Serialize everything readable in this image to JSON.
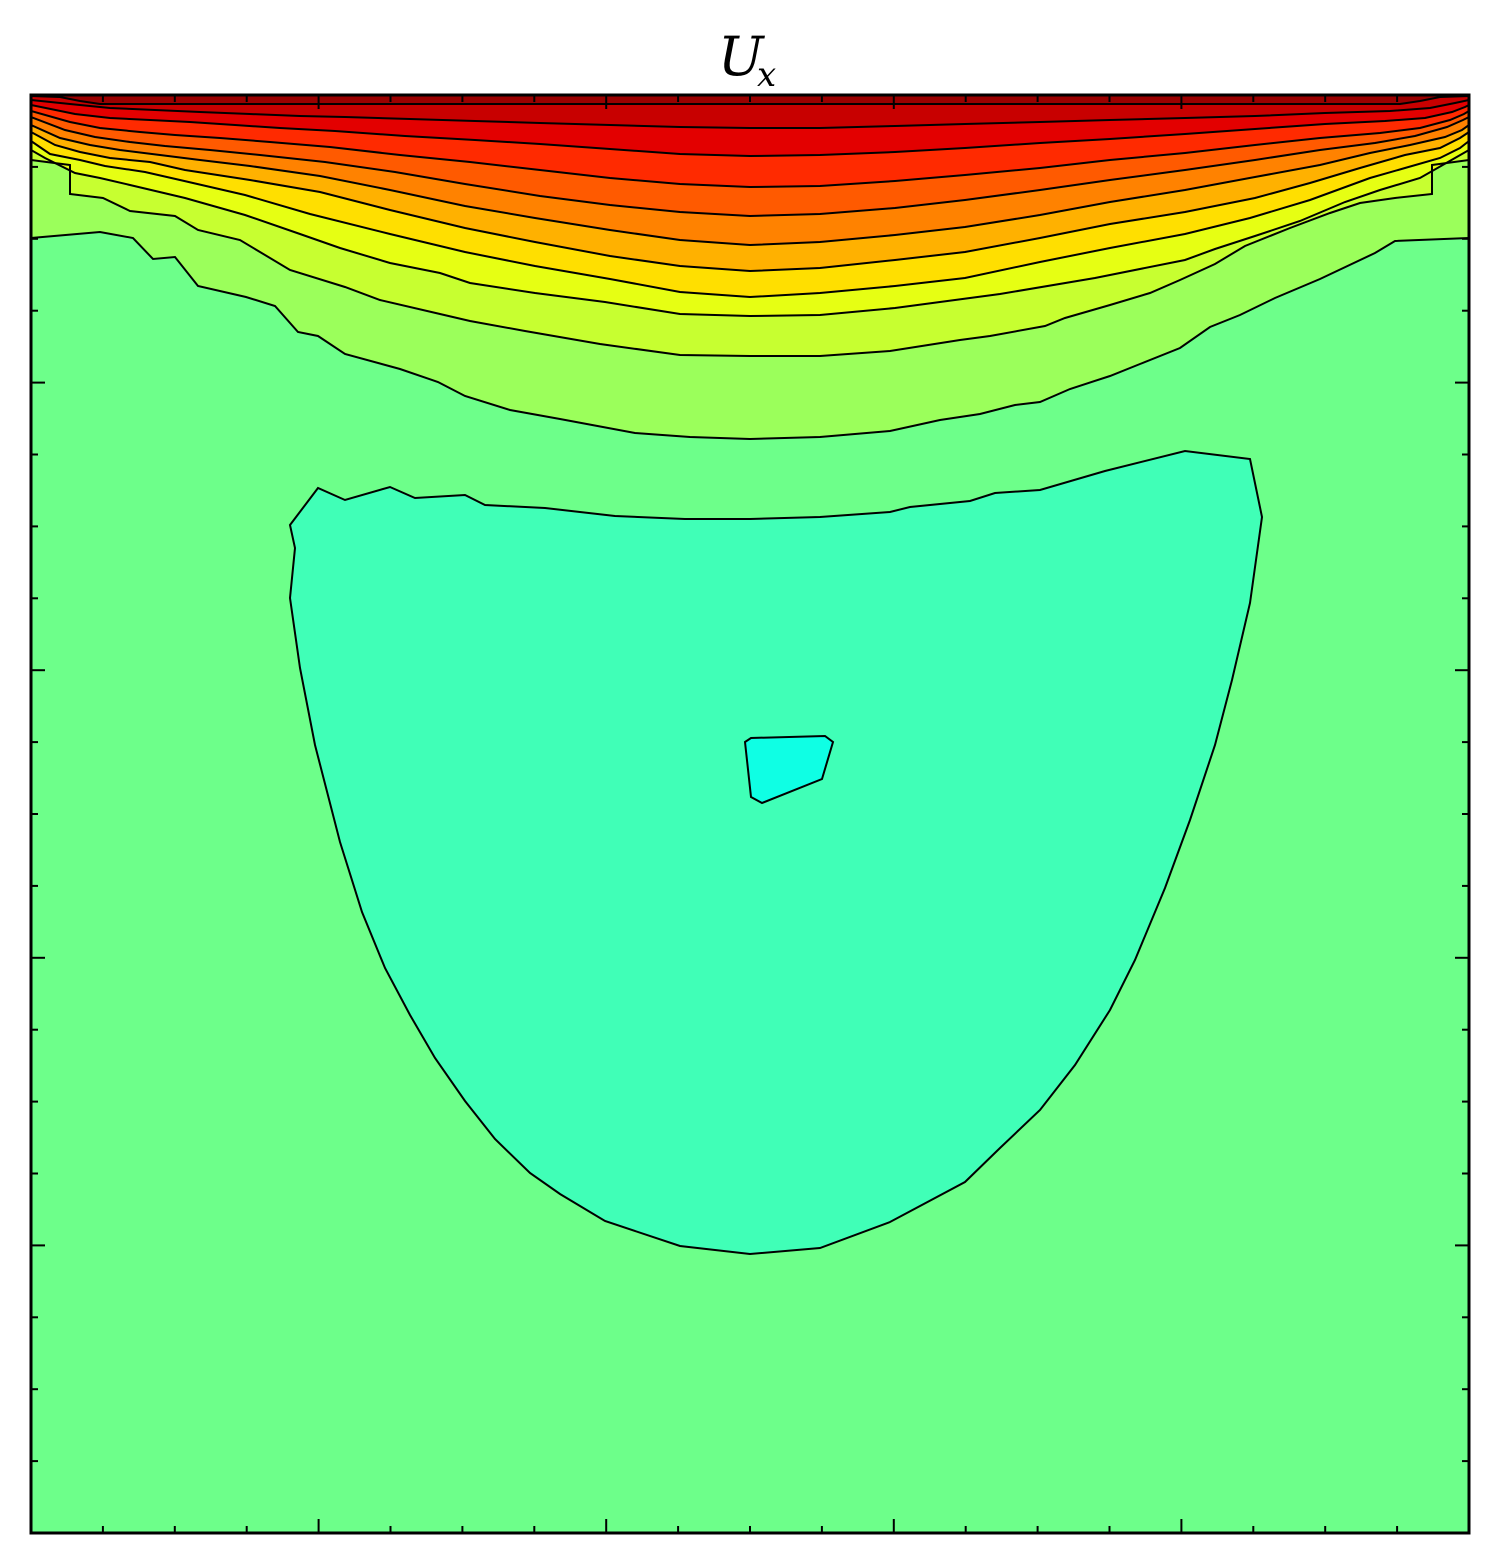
{
  "chart_data": {
    "type": "contour",
    "title": "U",
    "title_subscript": "x",
    "xlabel": "",
    "ylabel": "",
    "tick_labels_shown": false,
    "grid": false,
    "colorbar": false,
    "colormap": "jet",
    "filled_levels": [
      {
        "level": 0,
        "color": "#0fffe4"
      },
      {
        "level": 1,
        "color": "#40ffb7"
      },
      {
        "level": 2,
        "color": "#6dff8a"
      },
      {
        "level": 3,
        "color": "#9bff5b"
      },
      {
        "level": 4,
        "color": "#c7ff30"
      },
      {
        "level": 5,
        "color": "#e6ff13"
      },
      {
        "level": 6,
        "color": "#ffdf00"
      },
      {
        "level": 7,
        "color": "#ffb100"
      },
      {
        "level": 8,
        "color": "#ff8200"
      },
      {
        "level": 9,
        "color": "#ff5a00"
      },
      {
        "level": 10,
        "color": "#ff2a00"
      },
      {
        "level": 11,
        "color": "#e30000"
      },
      {
        "level": 12,
        "color": "#c80000"
      },
      {
        "level": 13,
        "color": "#9a0000"
      }
    ]
  }
}
